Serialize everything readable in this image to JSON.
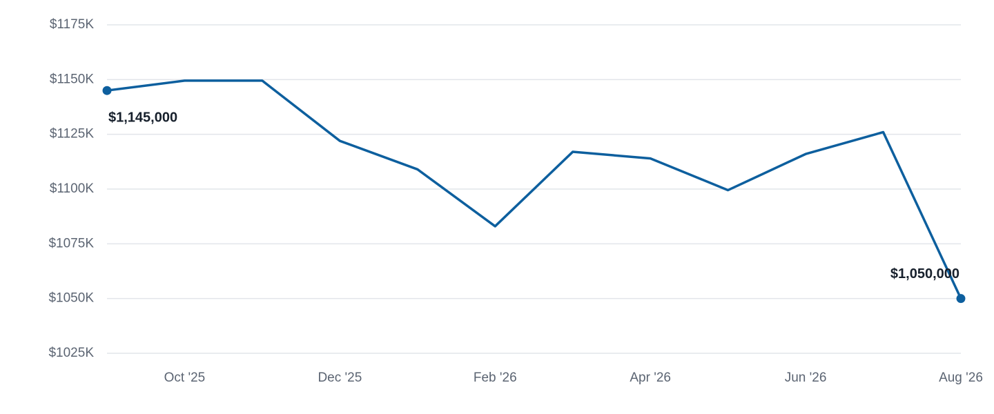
{
  "chart_data": {
    "type": "line",
    "categories": [
      null,
      "Oct '25",
      null,
      "Dec '25",
      null,
      "Feb '26",
      null,
      "Apr '26",
      null,
      "Jun '26",
      null,
      "Aug '26"
    ],
    "values": [
      1145000,
      1149500,
      1149500,
      1122000,
      1109000,
      1083000,
      1117000,
      1114000,
      1099500,
      1116000,
      1126000,
      1050000
    ],
    "value_labels": [
      "$1,145,000",
      null,
      null,
      null,
      null,
      null,
      null,
      null,
      null,
      null,
      null,
      "$1,050,000"
    ],
    "color": "#0d5f9e",
    "ylim": [
      1025000,
      1175000
    ],
    "yticks": [
      {
        "value": 1025000,
        "label": "$1025K"
      },
      {
        "value": 1050000,
        "label": "$1050K"
      },
      {
        "value": 1075000,
        "label": "$1075K"
      },
      {
        "value": 1100000,
        "label": "$1100K"
      },
      {
        "value": 1125000,
        "label": "$1125K"
      },
      {
        "value": 1150000,
        "label": "$1150K"
      },
      {
        "value": 1175000,
        "label": "$1175K"
      }
    ],
    "grid": true
  }
}
